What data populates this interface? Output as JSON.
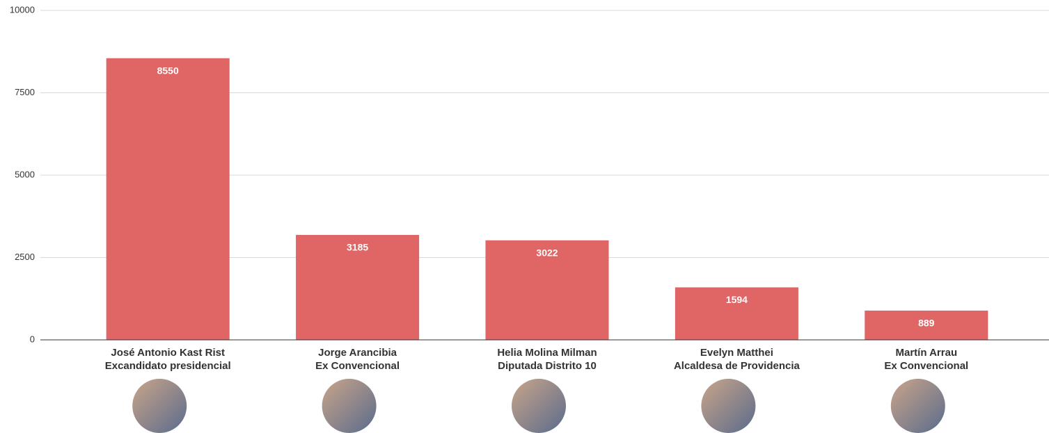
{
  "chart_data": {
    "type": "bar",
    "categories": [
      "José Antonio Kast Rist",
      "Jorge Arancibia",
      "Helia Molina Milman",
      "Evelyn Matthei",
      "Martín Arrau"
    ],
    "category_descriptions": [
      "Excandidato presidencial",
      "Ex Convencional",
      "Diputada Distrito 10",
      "Alcaldesa de Providencia",
      "Ex Convencional"
    ],
    "values": [
      8550,
      3185,
      3022,
      1594,
      889
    ],
    "color": "#e06666",
    "ylim": [
      0,
      10000
    ],
    "yticks": [
      0,
      2500,
      5000,
      7500,
      10000
    ],
    "grid": true
  }
}
